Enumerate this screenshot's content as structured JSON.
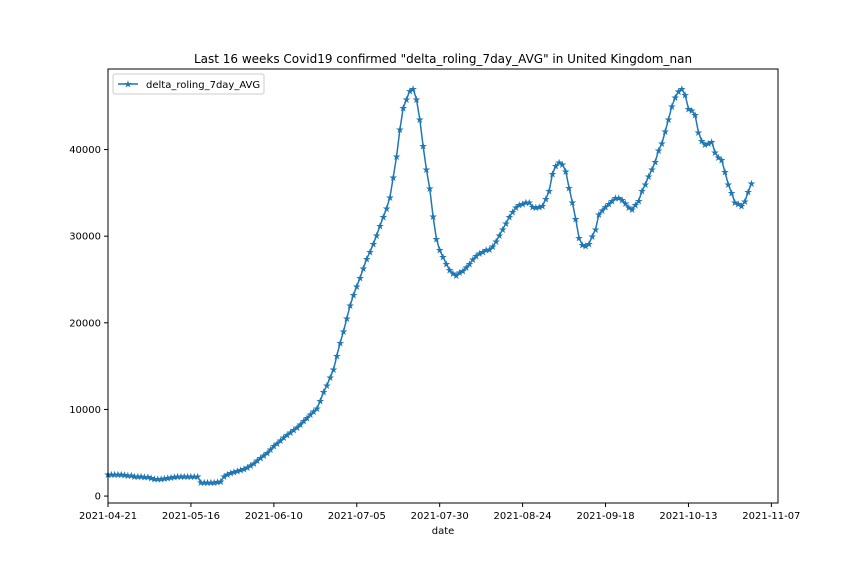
{
  "chart_data": {
    "type": "line",
    "title": "Last 16 weeks Covid19 confirmed \"delta_roling_7day_AVG\" in United Kingdom_nan",
    "xlabel": "date",
    "ylabel": "",
    "start_date": "2021-04-21",
    "end_date": "2021-11-09",
    "xlim": [
      "2021-04-21",
      "2021-11-09"
    ],
    "ylim": [
      -800,
      49300
    ],
    "x_ticks": [
      "2021-04-21",
      "2021-05-16",
      "2021-06-10",
      "2021-07-05",
      "2021-07-30",
      "2021-08-24",
      "2021-09-18",
      "2021-10-13",
      "2021-11-07"
    ],
    "y_ticks": [
      0,
      10000,
      20000,
      30000,
      40000
    ],
    "y_tick_labels": [
      "0",
      "10000",
      "20000",
      "30000",
      "40000"
    ],
    "legend": {
      "position": "upper-left",
      "entries": [
        "delta_roling_7day_AVG"
      ]
    },
    "grid": false,
    "color": "#1f77b4",
    "marker": "star",
    "series": [
      {
        "name": "delta_roling_7day_AVG",
        "x_start": "2021-04-21",
        "x_step_days": 1,
        "values": [
          2500,
          2500,
          2500,
          2500,
          2500,
          2450,
          2400,
          2400,
          2300,
          2300,
          2250,
          2200,
          2200,
          2100,
          2000,
          2000,
          2000,
          2050,
          2100,
          2150,
          2200,
          2250,
          2300,
          2300,
          2300,
          2250,
          2250,
          2250,
          1600,
          1550,
          1550,
          1550,
          1600,
          1650,
          1700,
          2300,
          2500,
          2650,
          2800,
          2900,
          3000,
          3150,
          3300,
          3550,
          3800,
          4100,
          4400,
          4700,
          5000,
          5400,
          5800,
          6100,
          6400,
          6750,
          7050,
          7350,
          7650,
          7950,
          8300,
          8700,
          9050,
          9400,
          9750,
          10100,
          11000,
          12000,
          12800,
          13700,
          14600,
          16200,
          17700,
          19000,
          20500,
          22000,
          23200,
          24200,
          25200,
          26300,
          27400,
          28200,
          29100,
          30100,
          31200,
          32200,
          33200,
          34500,
          36800,
          39200,
          42300,
          44800,
          45800,
          46800,
          47000,
          45800,
          43500,
          40400,
          37700,
          35500,
          32300,
          29700,
          28400,
          27600,
          26800,
          26100,
          25700,
          25500,
          25800,
          26000,
          26400,
          26800,
          27300,
          27700,
          28000,
          28200,
          28400,
          28500,
          28800,
          29400,
          30100,
          30800,
          31500,
          32200,
          32800,
          33300,
          33600,
          33700,
          33900,
          33900,
          33400,
          33300,
          33400,
          33500,
          34300,
          35200,
          37200,
          38100,
          38500,
          38300,
          37500,
          35600,
          33900,
          32000,
          29800,
          29000,
          28900,
          29100,
          30000,
          30800,
          32500,
          33000,
          33400,
          33700,
          34100,
          34400,
          34400,
          34200,
          33800,
          33300,
          33100,
          33600,
          34100,
          35200,
          36000,
          36900,
          37700,
          38600,
          39900,
          40700,
          42100,
          43500,
          45000,
          46000,
          46700,
          47000,
          46300,
          44700,
          44500,
          44000,
          42000,
          41000,
          40600,
          40700,
          40900,
          39700,
          39100,
          38800,
          37400,
          36000,
          35000,
          33900,
          33700,
          33500,
          34000,
          35100,
          36100
        ]
      }
    ]
  }
}
